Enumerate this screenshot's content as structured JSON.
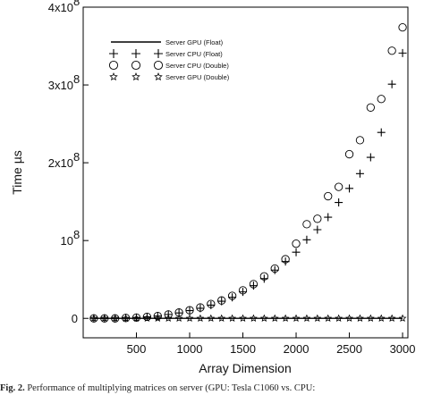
{
  "chart_data": {
    "type": "scatter",
    "xlabel": "Array Dimension",
    "ylabel": "Time µs",
    "xlim": [
      0,
      3050
    ],
    "ylim": [
      -25000000.0,
      400000000.0
    ],
    "x_ticks": [
      {
        "value": 500,
        "label": "500"
      },
      {
        "value": 1000,
        "label": "1000"
      },
      {
        "value": 1500,
        "label": "1500"
      },
      {
        "value": 2000,
        "label": "2000"
      },
      {
        "value": 2500,
        "label": "2500"
      },
      {
        "value": 3000,
        "label": "3000"
      }
    ],
    "y_ticks": [
      {
        "value": 0,
        "base": "0",
        "exp": ""
      },
      {
        "value": 100000000.0,
        "base": "10",
        "exp": "8"
      },
      {
        "value": 200000000.0,
        "base": "2x10",
        "exp": "8"
      },
      {
        "value": 300000000.0,
        "base": "3x10",
        "exp": "8"
      },
      {
        "value": 400000000.0,
        "base": "4x10",
        "exp": "8"
      }
    ],
    "legend_placement": "top-left",
    "grid": false,
    "series": [
      {
        "name": "Server GPU (Float)",
        "marker": "line",
        "x": [
          100,
          3000
        ],
        "y": [
          0,
          0
        ]
      },
      {
        "name": "Server CPU (Float)",
        "marker": "plus",
        "x": [
          100,
          200,
          300,
          400,
          500,
          600,
          700,
          800,
          900,
          1000,
          1100,
          1200,
          1300,
          1400,
          1500,
          1600,
          1700,
          1800,
          1900,
          2000,
          2100,
          2200,
          2300,
          2400,
          2500,
          2600,
          2700,
          2800,
          2900,
          3000
        ],
        "y": [
          0,
          0,
          0,
          500000,
          1000000,
          2000000,
          3000000,
          5000000,
          7000000,
          10000000,
          13000000,
          17000000,
          22000000,
          27000000,
          34000000,
          42000000,
          51000000,
          62000000,
          73000000,
          85000000,
          101000000,
          114000000,
          130000000,
          149000000,
          167000000,
          186000000,
          207000000,
          239000000,
          301000000,
          341000000
        ]
      },
      {
        "name": "Server CPU (Double)",
        "marker": "circle",
        "x": [
          100,
          200,
          300,
          400,
          500,
          600,
          700,
          800,
          900,
          1000,
          1100,
          1200,
          1300,
          1400,
          1500,
          1600,
          1700,
          1800,
          1900,
          2000,
          2100,
          2200,
          2300,
          2400,
          2500,
          2600,
          2700,
          2800,
          2900,
          3000
        ],
        "y": [
          0,
          0,
          0,
          500000,
          1000000,
          2000000,
          3000000,
          5000000,
          7500000,
          10500000,
          14000000,
          18500000,
          23000000,
          29000000,
          36000000,
          44000000,
          54000000,
          64000000,
          76000000,
          96000000,
          121000000,
          128000000,
          157000000,
          169000000,
          211000000,
          229000000,
          271000000,
          282000000,
          344000000,
          374000000
        ]
      },
      {
        "name": "Server GPU (Double)",
        "marker": "star",
        "x": [
          100,
          200,
          300,
          400,
          500,
          600,
          700,
          800,
          900,
          1000,
          1100,
          1200,
          1300,
          1400,
          1500,
          1600,
          1700,
          1800,
          1900,
          2000,
          2100,
          2200,
          2300,
          2400,
          2500,
          2600,
          2700,
          2800,
          2900,
          3000
        ],
        "y": [
          0,
          0,
          0,
          0,
          0,
          0,
          0,
          0,
          0,
          0,
          0,
          0,
          0,
          0,
          0,
          0,
          0,
          0,
          0,
          0,
          0,
          0,
          0,
          0,
          0,
          0,
          0,
          0,
          0,
          0
        ]
      }
    ]
  },
  "caption": {
    "label": "Fig. 2.",
    "text": "Performance of multiplying matrices on server (GPU: Tesla C1060 vs. CPU: "
  }
}
